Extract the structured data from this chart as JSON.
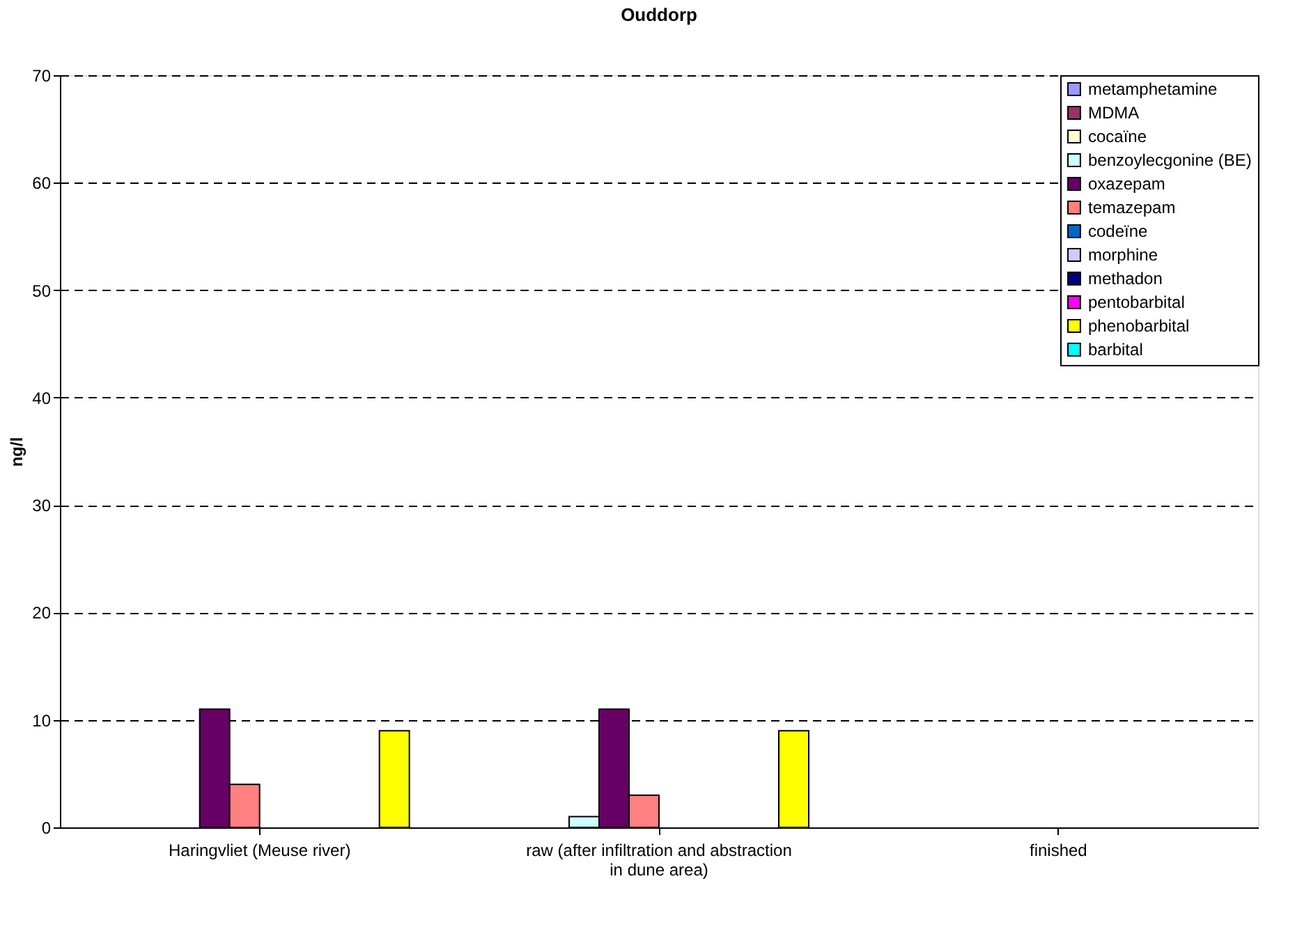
{
  "chart_data": {
    "type": "bar",
    "title": "Ouddorp",
    "ylabel": "ng/l",
    "categories": [
      "Haringvliet (Meuse river)",
      "raw (after infiltration and abstraction in dune area)",
      "finished"
    ],
    "series": [
      {
        "name": "metamphetamine",
        "color": "#9999ff",
        "values": [
          null,
          null,
          null
        ]
      },
      {
        "name": "MDMA",
        "color": "#993366",
        "values": [
          null,
          null,
          null
        ]
      },
      {
        "name": "cocaïne",
        "color": "#ffffcc",
        "values": [
          null,
          null,
          null
        ]
      },
      {
        "name": "benzoylecgonine (BE)",
        "color": "#ccffff",
        "values": [
          null,
          1,
          null
        ]
      },
      {
        "name": "oxazepam",
        "color": "#660066",
        "values": [
          11,
          11,
          null
        ]
      },
      {
        "name": "temazepam",
        "color": "#ff8080",
        "values": [
          4,
          3,
          null
        ]
      },
      {
        "name": "codeïne",
        "color": "#0066cc",
        "values": [
          null,
          null,
          null
        ]
      },
      {
        "name": "morphine",
        "color": "#ccccff",
        "values": [
          null,
          null,
          null
        ]
      },
      {
        "name": "methadon",
        "color": "#000080",
        "values": [
          null,
          null,
          null
        ]
      },
      {
        "name": "pentobarbital",
        "color": "#ff00ff",
        "values": [
          null,
          null,
          null
        ]
      },
      {
        "name": "phenobarbital",
        "color": "#ffff00",
        "values": [
          9,
          9,
          null
        ]
      },
      {
        "name": "barbital",
        "color": "#00ffff",
        "values": [
          null,
          null,
          null
        ]
      }
    ],
    "ylim": [
      0,
      70
    ],
    "yticks": [
      0,
      10,
      20,
      30,
      40,
      50,
      60,
      70
    ],
    "grid": "y",
    "legend": "top right"
  }
}
